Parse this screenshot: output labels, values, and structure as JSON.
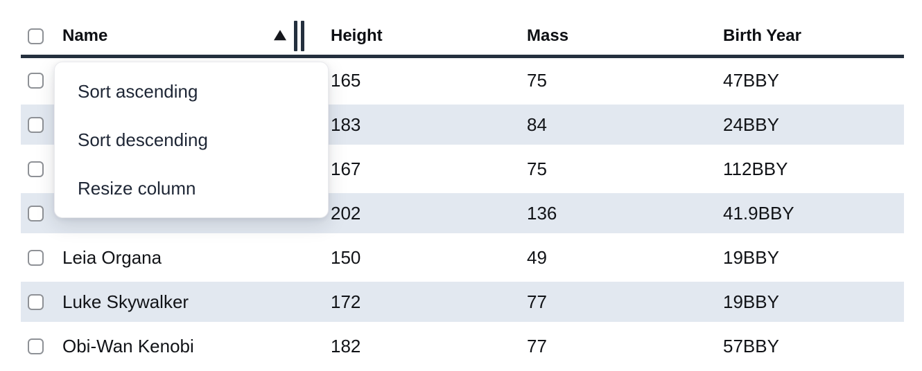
{
  "table": {
    "columns": [
      {
        "label": "Name",
        "sort_indicator": "ascending",
        "has_resize_handle": true
      },
      {
        "label": "Height",
        "sort_indicator": "",
        "has_resize_handle": false
      },
      {
        "label": "Mass",
        "sort_indicator": "",
        "has_resize_handle": false
      },
      {
        "label": "Birth Year",
        "sort_indicator": "",
        "has_resize_handle": false
      }
    ],
    "rows": [
      {
        "name": "",
        "height": "165",
        "mass": "75",
        "birth_year": "47BBY"
      },
      {
        "name": "",
        "height": "183",
        "mass": "84",
        "birth_year": "24BBY"
      },
      {
        "name": "",
        "height": "167",
        "mass": "75",
        "birth_year": "112BBY"
      },
      {
        "name": "",
        "height": "202",
        "mass": "136",
        "birth_year": "41.9BBY"
      },
      {
        "name": "Leia Organa",
        "height": "150",
        "mass": "49",
        "birth_year": "19BBY"
      },
      {
        "name": "Luke Skywalker",
        "height": "172",
        "mass": "77",
        "birth_year": "19BBY"
      },
      {
        "name": "Obi-Wan Kenobi",
        "height": "182",
        "mass": "77",
        "birth_year": "57BBY"
      }
    ]
  },
  "context_menu": {
    "items": [
      "Sort ascending",
      "Sort descending",
      "Resize column"
    ]
  },
  "icons": {
    "sort_ascending_indicator": "up-triangle",
    "resize_handle": "double-vertical-bar",
    "row_selector": "checkbox-unchecked"
  },
  "colors": {
    "header_underline": "#24303e",
    "zebra_stripe": "#e2e8f0",
    "menu_text": "#1e2635",
    "cell_text": "#111317",
    "header_text": "#0d0f13",
    "checkbox_border": "#8e9196",
    "menu_border": "#e9eaed",
    "sort_icon": "#15171c",
    "background": "#ffffff"
  }
}
